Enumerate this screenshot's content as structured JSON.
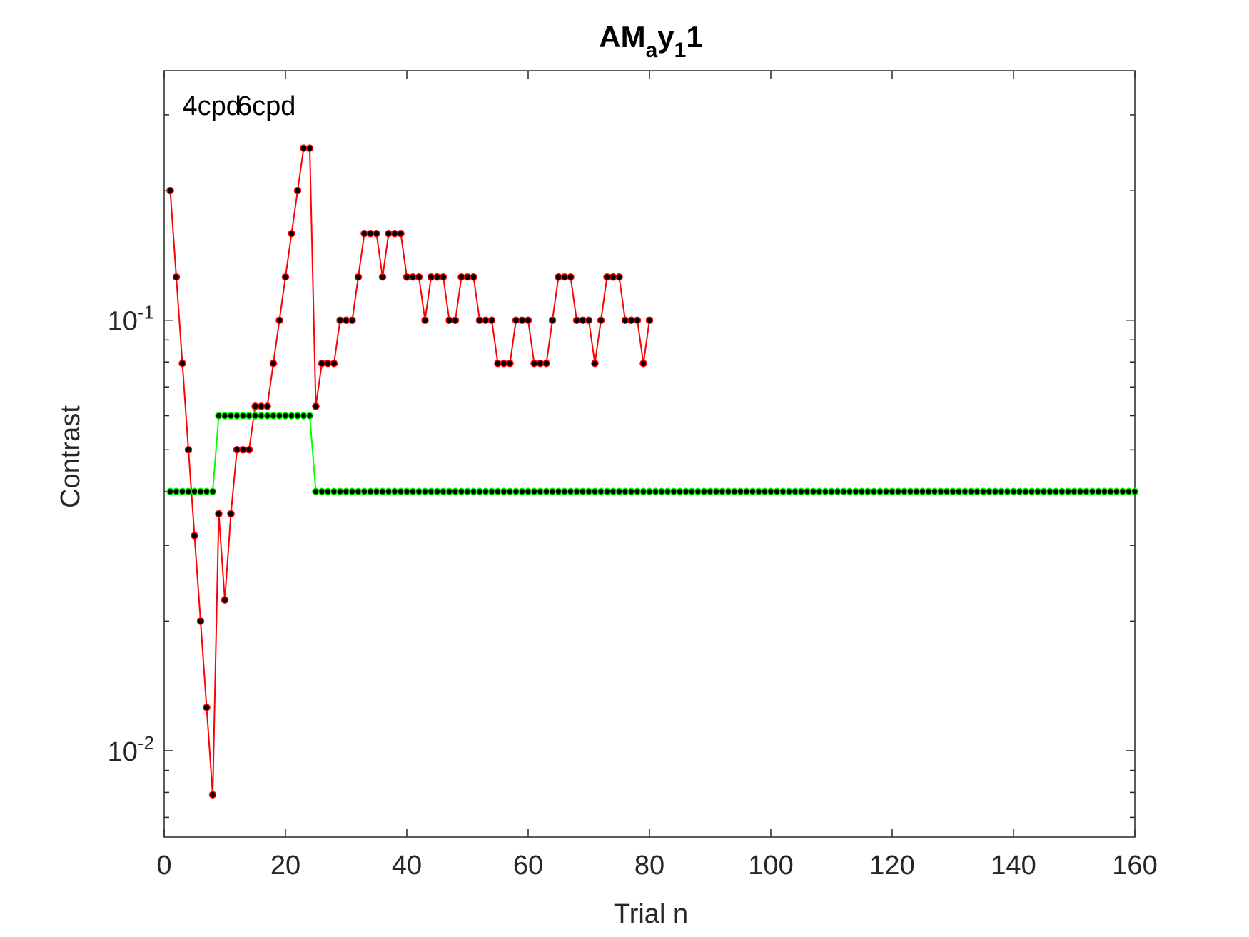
{
  "chart_data": {
    "type": "line",
    "title": {
      "base": "AM",
      "sub1": "a",
      "mid": "y",
      "sub2": "1",
      "tail": "1"
    },
    "xlabel": "Trial n",
    "ylabel": "Contrast",
    "xlim": [
      0,
      160
    ],
    "ylim": [
      0.0063,
      0.38
    ],
    "yscale": "log",
    "x_ticks": [
      0,
      20,
      40,
      60,
      80,
      100,
      120,
      140,
      160
    ],
    "y_ticks": [
      {
        "value": 0.01,
        "base": "10",
        "exp": "-2"
      },
      {
        "value": 0.1,
        "base": "10",
        "exp": "-1"
      }
    ],
    "annotations": [
      {
        "text": "4cpd",
        "x": 3,
        "y": 0.3
      },
      {
        "text": "6cpd",
        "x": 12,
        "y": 0.3
      }
    ],
    "grid": false,
    "series": [
      {
        "color": "#ff0000",
        "marker_color": "#000000",
        "x_start": 1,
        "values": [
          0.2,
          0.126,
          0.0794,
          0.05,
          0.0316,
          0.02,
          0.0126,
          0.0079,
          0.0355,
          0.0224,
          0.0355,
          0.05,
          0.05,
          0.05,
          0.0631,
          0.0631,
          0.0631,
          0.0794,
          0.1,
          0.126,
          0.159,
          0.2,
          0.251,
          0.251,
          0.0631,
          0.0794,
          0.0794,
          0.0794,
          0.1,
          0.1,
          0.1,
          0.126,
          0.159,
          0.159,
          0.159,
          0.126,
          0.159,
          0.159,
          0.159,
          0.126,
          0.126,
          0.126,
          0.1,
          0.126,
          0.126,
          0.126,
          0.1,
          0.1,
          0.126,
          0.126,
          0.126,
          0.1,
          0.1,
          0.1,
          0.0794,
          0.0794,
          0.0794,
          0.1,
          0.1,
          0.1,
          0.0794,
          0.0794,
          0.0794,
          0.1,
          0.126,
          0.126,
          0.126,
          0.1,
          0.1,
          0.1,
          0.0794,
          0.1,
          0.126,
          0.126,
          0.126,
          0.1,
          0.1,
          0.1,
          0.0794,
          0.1
        ]
      },
      {
        "color": "#00ff00",
        "marker_color": "#000000",
        "x_start": 1,
        "segments": [
          {
            "from": 1,
            "to": 8,
            "value": 0.04
          },
          {
            "from": 9,
            "to": 24,
            "value": 0.06
          },
          {
            "from": 25,
            "to": 160,
            "value": 0.04
          }
        ]
      }
    ]
  }
}
